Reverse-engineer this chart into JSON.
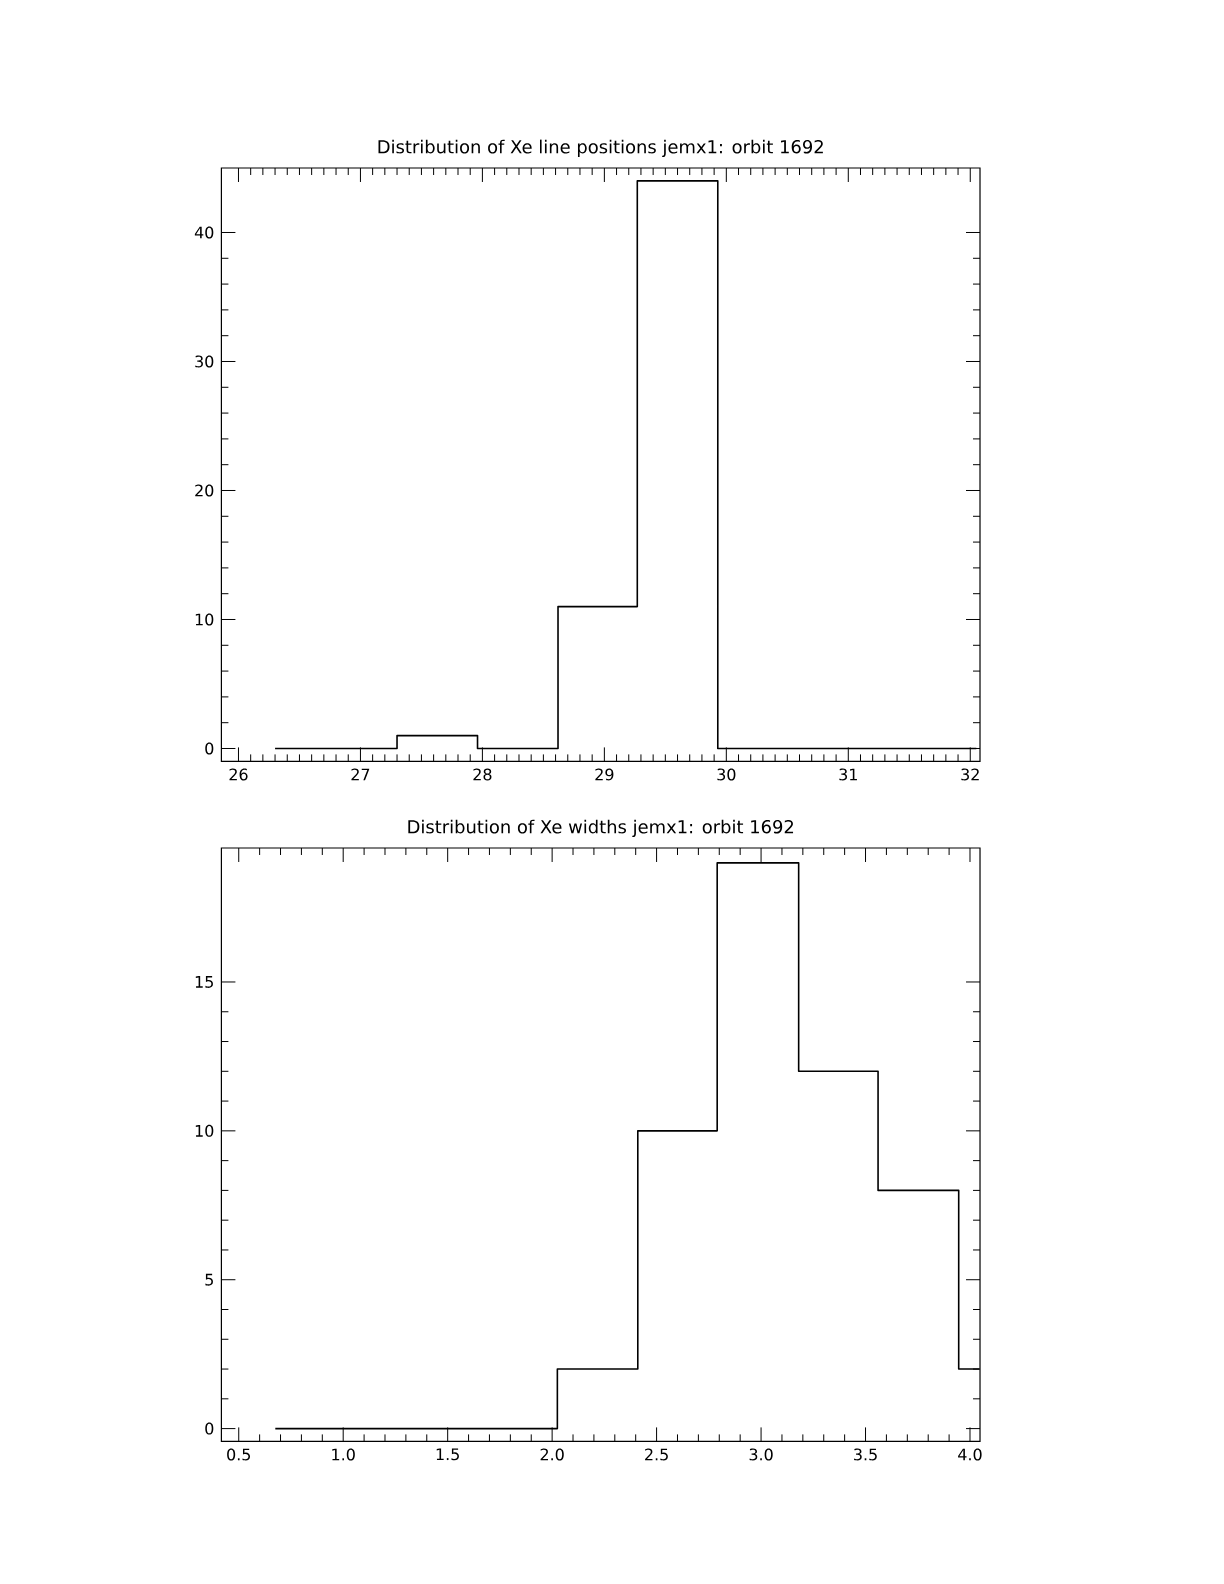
{
  "chart_data": [
    {
      "type": "histogram",
      "title": "Distribution of Xe line positions jemx1: orbit 1692",
      "bins": [
        26.3,
        27.3,
        27.96,
        28.62,
        29.27,
        29.93,
        32.05
      ],
      "values": [
        0,
        1,
        0,
        11,
        44,
        0
      ],
      "color": "#000000",
      "xlim": [
        25.86,
        32.08
      ],
      "ylim": [
        -1,
        45
      ],
      "xticks": [
        26,
        27,
        28,
        29,
        30,
        31,
        32
      ],
      "yticks": [
        0,
        10,
        20,
        30,
        40
      ],
      "grid": false
    },
    {
      "type": "histogram",
      "title": "Distribution of Xe widths jemx1: orbit 1692",
      "bins": [
        0.675,
        2.025,
        2.41,
        2.79,
        3.18,
        3.56,
        3.946,
        4.045
      ],
      "values": [
        0,
        2,
        10,
        19,
        12,
        8,
        2
      ],
      "color": "#000000",
      "xlim": [
        0.417,
        4.048
      ],
      "ylim": [
        -0.43,
        19.5
      ],
      "xticks": [
        0.5,
        {
          "value": 1,
          "label": "1.0"
        },
        1.5,
        {
          "value": 2,
          "label": "2.0"
        },
        2.5,
        {
          "value": 3,
          "label": "3.0"
        },
        3.5,
        {
          "value": 4,
          "label": "4.0"
        }
      ],
      "yticks": [
        0,
        5,
        10,
        15
      ],
      "grid": false
    }
  ]
}
